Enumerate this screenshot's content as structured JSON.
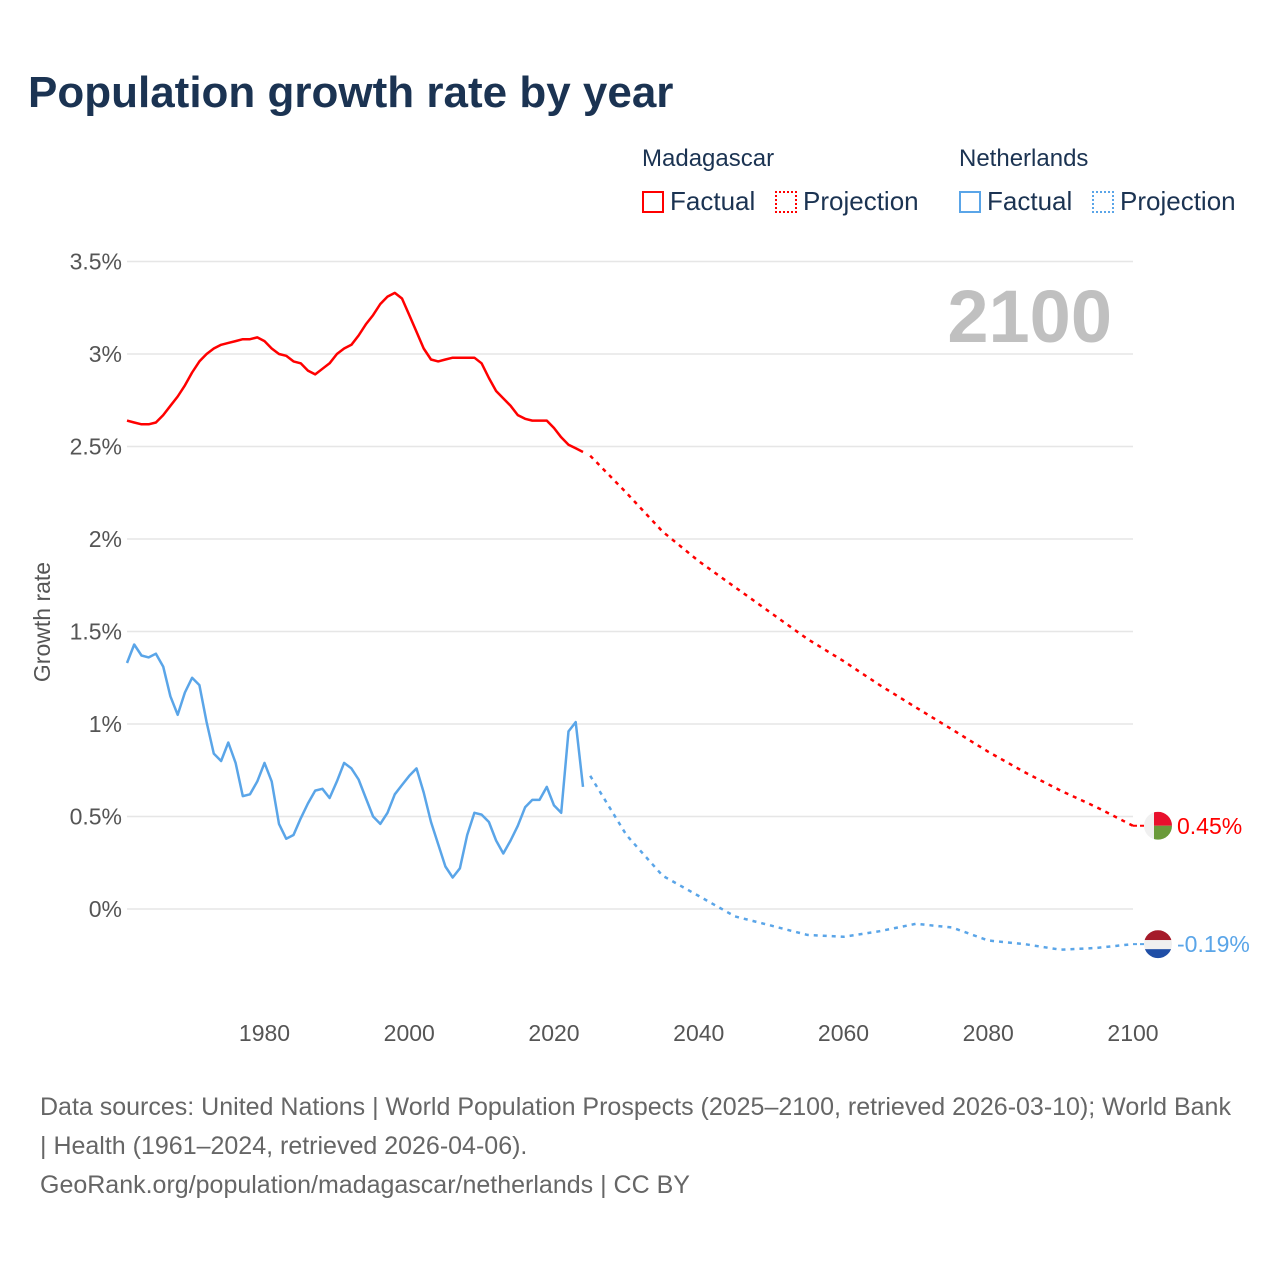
{
  "title": "Population growth rate by year",
  "legend": {
    "groups": [
      {
        "name": "Madagascar",
        "factual": "Factual",
        "projection": "Projection",
        "color": "#ff0000"
      },
      {
        "name": "Netherlands",
        "factual": "Factual",
        "projection": "Projection",
        "color": "#5aa5e8"
      }
    ]
  },
  "year_overlay": "2100",
  "footer": {
    "sources": "Data sources: United Nations | World Population Prospects (2025–2100, retrieved 2026-03-10); World Bank | Health (1961–2024, retrieved 2026-04-06).",
    "credit": "GeoRank.org/population/madagascar/netherlands | CC BY"
  },
  "chart_data": {
    "type": "line",
    "title": "Population growth rate by year",
    "xlabel": "",
    "ylabel": "Growth rate",
    "xlim": [
      1961,
      2100
    ],
    "ylim": [
      -0.5,
      3.5
    ],
    "xticks": [
      1980,
      2000,
      2020,
      2040,
      2060,
      2080,
      2100
    ],
    "xtick_labels": [
      "1980",
      "2000",
      "2020",
      "2040",
      "2060",
      "2080",
      "2100"
    ],
    "yticks": [
      0,
      0.5,
      1,
      1.5,
      2,
      2.5,
      3,
      3.5
    ],
    "ytick_labels": [
      "0%",
      "0.5%",
      "1%",
      "1.5%",
      "2%",
      "2.5%",
      "3%",
      "3.5%"
    ],
    "grid": true,
    "series": [
      {
        "name": "Madagascar",
        "color": "#ff0000",
        "end_label": "0.45%",
        "factual": {
          "x": [
            1961,
            1962,
            1963,
            1964,
            1965,
            1966,
            1967,
            1968,
            1969,
            1970,
            1971,
            1972,
            1973,
            1974,
            1975,
            1976,
            1977,
            1978,
            1979,
            1980,
            1981,
            1982,
            1983,
            1984,
            1985,
            1986,
            1987,
            1988,
            1989,
            1990,
            1991,
            1992,
            1993,
            1994,
            1995,
            1996,
            1997,
            1998,
            1999,
            2000,
            2001,
            2002,
            2003,
            2004,
            2005,
            2006,
            2007,
            2008,
            2009,
            2010,
            2011,
            2012,
            2013,
            2014,
            2015,
            2016,
            2017,
            2018,
            2019,
            2020,
            2021,
            2022,
            2023,
            2024
          ],
          "y": [
            2.64,
            2.63,
            2.62,
            2.62,
            2.63,
            2.67,
            2.72,
            2.77,
            2.83,
            2.9,
            2.96,
            3.0,
            3.03,
            3.05,
            3.06,
            3.07,
            3.08,
            3.08,
            3.09,
            3.07,
            3.03,
            3.0,
            2.99,
            2.96,
            2.95,
            2.91,
            2.89,
            2.92,
            2.95,
            3.0,
            3.03,
            3.05,
            3.1,
            3.16,
            3.21,
            3.27,
            3.31,
            3.33,
            3.3,
            3.21,
            3.12,
            3.03,
            2.97,
            2.96,
            2.97,
            2.98,
            2.98,
            2.98,
            2.98,
            2.95,
            2.87,
            2.8,
            2.76,
            2.72,
            2.67,
            2.65,
            2.64,
            2.64,
            2.64,
            2.6,
            2.55,
            2.51,
            2.49,
            2.47
          ]
        },
        "projection": {
          "x": [
            2025,
            2030,
            2035,
            2040,
            2045,
            2050,
            2055,
            2060,
            2065,
            2070,
            2075,
            2080,
            2085,
            2090,
            2095,
            2100
          ],
          "y": [
            2.45,
            2.25,
            2.04,
            1.88,
            1.74,
            1.6,
            1.46,
            1.34,
            1.21,
            1.09,
            0.97,
            0.85,
            0.74,
            0.64,
            0.55,
            0.45
          ]
        }
      },
      {
        "name": "Netherlands",
        "color": "#5aa5e8",
        "end_label": "-0.19%",
        "factual": {
          "x": [
            1961,
            1962,
            1963,
            1964,
            1965,
            1966,
            1967,
            1968,
            1969,
            1970,
            1971,
            1972,
            1973,
            1974,
            1975,
            1976,
            1977,
            1978,
            1979,
            1980,
            1981,
            1982,
            1983,
            1984,
            1985,
            1986,
            1987,
            1988,
            1989,
            1990,
            1991,
            1992,
            1993,
            1994,
            1995,
            1996,
            1997,
            1998,
            1999,
            2000,
            2001,
            2002,
            2003,
            2004,
            2005,
            2006,
            2007,
            2008,
            2009,
            2010,
            2011,
            2012,
            2013,
            2014,
            2015,
            2016,
            2017,
            2018,
            2019,
            2020,
            2021,
            2022,
            2023,
            2024
          ],
          "y": [
            1.33,
            1.43,
            1.37,
            1.36,
            1.38,
            1.31,
            1.15,
            1.05,
            1.17,
            1.25,
            1.21,
            1.01,
            0.84,
            0.8,
            0.9,
            0.79,
            0.61,
            0.62,
            0.69,
            0.79,
            0.69,
            0.46,
            0.38,
            0.4,
            0.49,
            0.57,
            0.64,
            0.65,
            0.6,
            0.69,
            0.79,
            0.76,
            0.7,
            0.6,
            0.5,
            0.46,
            0.52,
            0.62,
            0.67,
            0.72,
            0.76,
            0.63,
            0.47,
            0.35,
            0.23,
            0.17,
            0.22,
            0.4,
            0.52,
            0.51,
            0.47,
            0.37,
            0.3,
            0.37,
            0.45,
            0.55,
            0.59,
            0.59,
            0.66,
            0.56,
            0.52,
            0.96,
            1.01,
            0.66
          ]
        },
        "projection": {
          "x": [
            2025,
            2030,
            2035,
            2040,
            2045,
            2050,
            2055,
            2060,
            2065,
            2070,
            2075,
            2080,
            2085,
            2090,
            2095,
            2100
          ],
          "y": [
            0.72,
            0.4,
            0.18,
            0.07,
            -0.04,
            -0.09,
            -0.14,
            -0.15,
            -0.12,
            -0.08,
            -0.1,
            -0.17,
            -0.19,
            -0.22,
            -0.21,
            -0.19
          ]
        }
      }
    ]
  }
}
